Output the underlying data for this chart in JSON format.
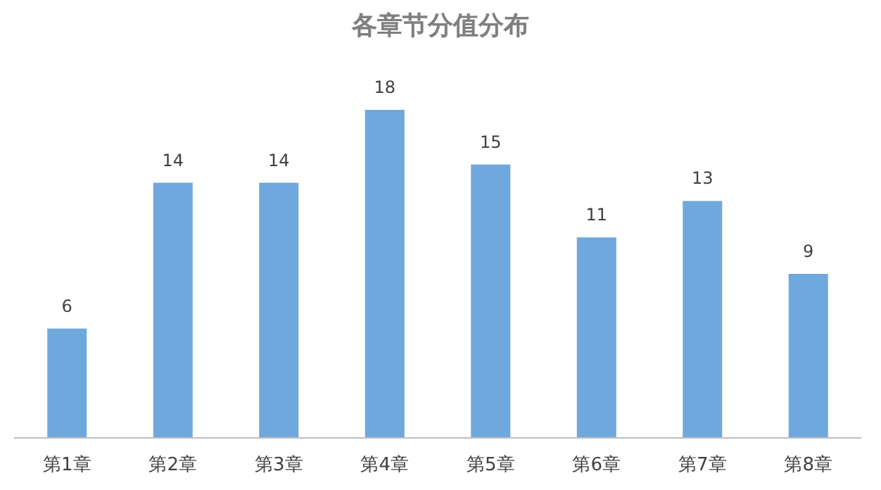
{
  "chart_data": {
    "type": "bar",
    "title": "各章节分值分布",
    "categories": [
      "第1章",
      "第2章",
      "第3章",
      "第4章",
      "第5章",
      "第6章",
      "第7章",
      "第8章"
    ],
    "values": [
      6,
      14,
      14,
      18,
      15,
      11,
      13,
      9
    ],
    "color": "#6fa8dc",
    "data_labels": true,
    "grid": false
  }
}
